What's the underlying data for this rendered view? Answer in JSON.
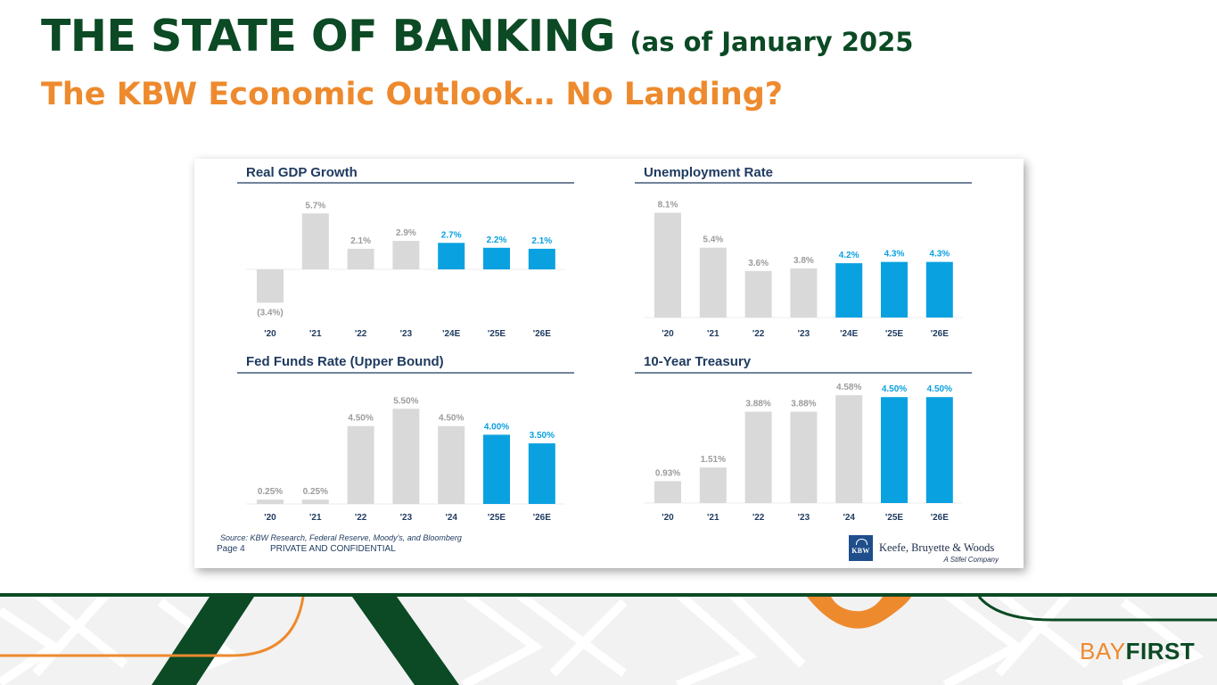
{
  "slide": {
    "title": "THE STATE OF BANKING",
    "title_suffix": "(as of January 2025",
    "subtitle": "The KBW Economic Outlook… No Landing?"
  },
  "colors": {
    "actual": "#d9d9d9",
    "estimate": "#0aa1e0",
    "actual_label": "#9b9b9b",
    "heading": "#1e3a5f",
    "tick": "#1e3a5f",
    "green": "#0b4a24",
    "orange": "#ee8a2e"
  },
  "chart_data": [
    {
      "type": "bar",
      "title": "Real GDP Growth",
      "categories": [
        "'20",
        "'21",
        "'22",
        "'23",
        "'24E",
        "'25E",
        "'26E"
      ],
      "values": [
        -3.4,
        5.7,
        2.1,
        2.9,
        2.7,
        2.2,
        2.1
      ],
      "labels": [
        "(3.4%)",
        "5.7%",
        "2.1%",
        "2.9%",
        "2.7%",
        "2.2%",
        "2.1%"
      ],
      "estimate": [
        false,
        false,
        false,
        false,
        true,
        true,
        true
      ],
      "unit": "%"
    },
    {
      "type": "bar",
      "title": "Unemployment Rate",
      "categories": [
        "'20",
        "'21",
        "'22",
        "'23",
        "'24E",
        "'25E",
        "'26E"
      ],
      "values": [
        8.1,
        5.4,
        3.6,
        3.8,
        4.2,
        4.3,
        4.3
      ],
      "labels": [
        "8.1%",
        "5.4%",
        "3.6%",
        "3.8%",
        "4.2%",
        "4.3%",
        "4.3%"
      ],
      "estimate": [
        false,
        false,
        false,
        false,
        true,
        true,
        true
      ],
      "unit": "%"
    },
    {
      "type": "bar",
      "title": "Fed Funds Rate (Upper Bound)",
      "categories": [
        "'20",
        "'21",
        "'22",
        "'23",
        "'24",
        "'25E",
        "'26E"
      ],
      "values": [
        0.25,
        0.25,
        4.5,
        5.5,
        4.5,
        4.0,
        3.5
      ],
      "labels": [
        "0.25%",
        "0.25%",
        "4.50%",
        "5.50%",
        "4.50%",
        "4.00%",
        "3.50%"
      ],
      "estimate": [
        false,
        false,
        false,
        false,
        false,
        true,
        true
      ],
      "unit": "%"
    },
    {
      "type": "bar",
      "title": "10-Year Treasury",
      "categories": [
        "'20",
        "'21",
        "'22",
        "'23",
        "'24",
        "'25E",
        "'26E"
      ],
      "values": [
        0.93,
        1.51,
        3.88,
        3.88,
        4.58,
        4.5,
        4.5
      ],
      "labels": [
        "0.93%",
        "1.51%",
        "3.88%",
        "3.88%",
        "4.58%",
        "4.50%",
        "4.50%"
      ],
      "estimate": [
        false,
        false,
        false,
        false,
        false,
        true,
        true
      ],
      "unit": "%"
    }
  ],
  "card": {
    "source": "Source: KBW Research, Federal Reserve, Moody's, and Bloomberg",
    "page": "Page 4",
    "confidential": "PRIVATE AND CONFIDENTIAL",
    "kbw_logo_text": "KBW",
    "kbw_name": "Keefe, Bruyette & Woods",
    "kbw_tagline": "A Stifel Company"
  },
  "brand": {
    "bay": "BAY",
    "first": "FIRST"
  }
}
